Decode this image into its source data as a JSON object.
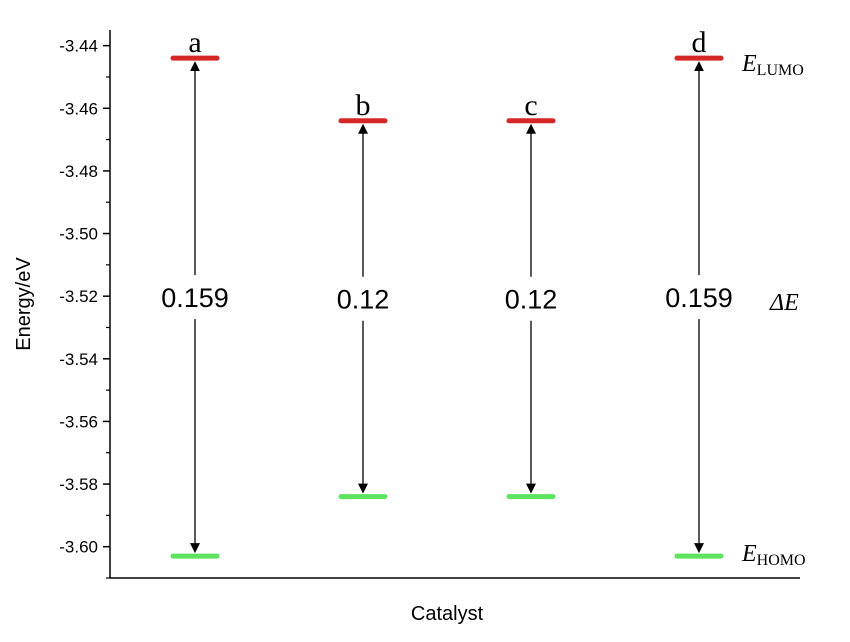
{
  "chart_data": {
    "type": "energy_level_diagram",
    "title": "",
    "xlabel": "Catalyst",
    "ylabel": "Energy/eV",
    "ylim": [
      -3.61,
      -3.435
    ],
    "yticks": [
      -3.44,
      -3.46,
      -3.48,
      -3.5,
      -3.52,
      -3.54,
      -3.56,
      -3.58,
      -3.6
    ],
    "ytick_labels": [
      "-3.44",
      "-3.46",
      "-3.48",
      "-3.50",
      "-3.52",
      "-3.54",
      "-3.56",
      "-3.58",
      "-3.60"
    ],
    "series": [
      {
        "name": "E_LUMO",
        "color": "#d62728"
      },
      {
        "name": "E_HOMO",
        "color": "#5ee35e"
      }
    ],
    "categories": [
      {
        "label": "a",
        "lumo": -3.444,
        "homo": -3.603,
        "gap_label": "0.159"
      },
      {
        "label": "b",
        "lumo": -3.464,
        "homo": -3.584,
        "gap_label": "0.12"
      },
      {
        "label": "c",
        "lumo": -3.464,
        "homo": -3.584,
        "gap_label": "0.12"
      },
      {
        "label": "d",
        "lumo": -3.444,
        "homo": -3.603,
        "gap_label": "0.159"
      }
    ],
    "annotations": {
      "lumo_label": {
        "symbol": "E",
        "subscript": "LUMO"
      },
      "homo_label": {
        "symbol": "E",
        "subscript": "HOMO"
      },
      "gap_symbol": "ΔE"
    },
    "grid": false
  }
}
